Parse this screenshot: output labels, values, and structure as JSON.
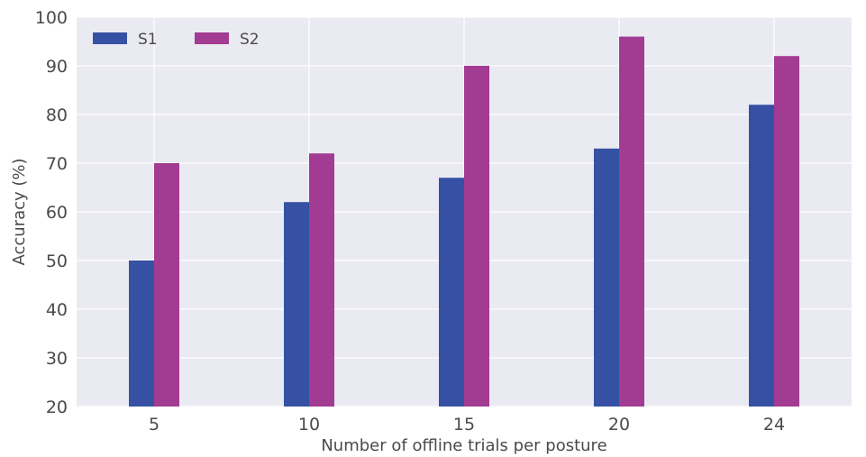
{
  "chart_data": {
    "type": "bar",
    "title": "",
    "xlabel": "Number of offline trials per posture",
    "ylabel": "Accuracy (%)",
    "categories": [
      "5",
      "10",
      "15",
      "20",
      "24"
    ],
    "series": [
      {
        "name": "S1",
        "values": [
          50,
          62,
          67,
          73,
          82
        ],
        "color": "#3651a3"
      },
      {
        "name": "S2",
        "values": [
          70,
          72,
          90,
          96,
          92
        ],
        "color": "#a23b92"
      }
    ],
    "ylim": [
      20,
      100
    ],
    "yticks": [
      20,
      30,
      40,
      50,
      60,
      70,
      80,
      90,
      100
    ],
    "grid": true,
    "legend_position": "top-left",
    "background_color": "#eaeaf2",
    "grid_color": "#ffffff"
  }
}
